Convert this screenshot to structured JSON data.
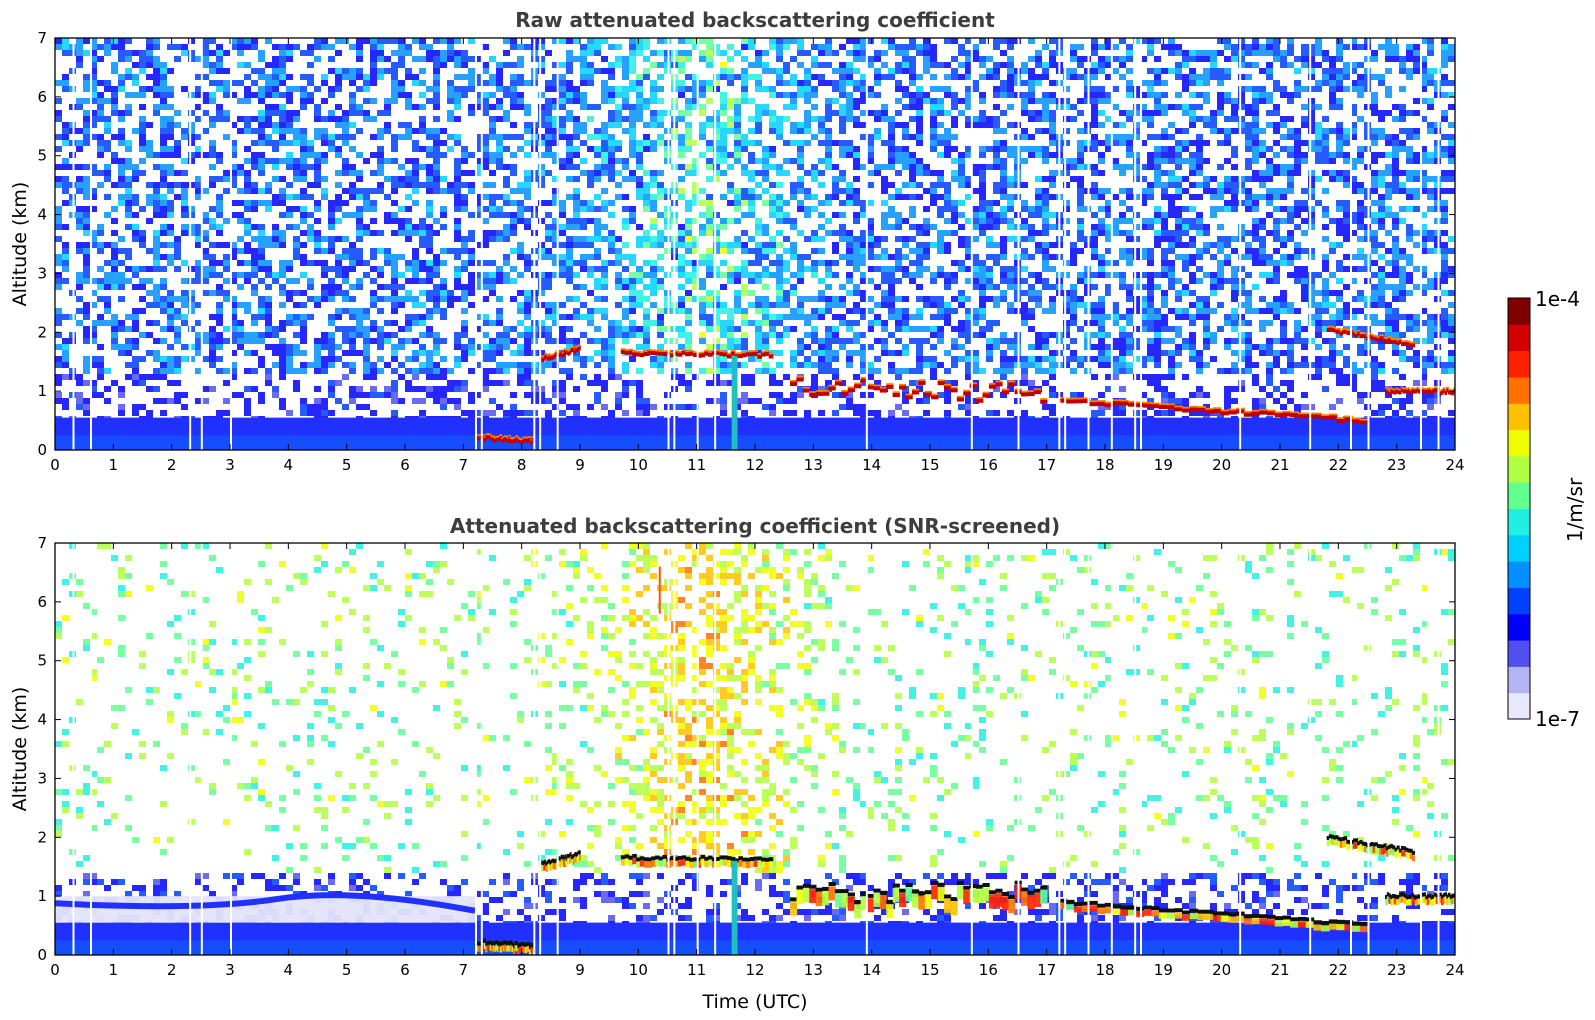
{
  "chart_data": [
    {
      "type": "heatmap",
      "id": "raw",
      "title": "Raw attenuated backscattering coefficient",
      "xlabel": "",
      "ylabel": "Altitude (km)",
      "xlim": [
        0,
        24
      ],
      "ylim": [
        0,
        7
      ],
      "xticks": [
        0,
        1,
        2,
        3,
        4,
        5,
        6,
        7,
        8,
        9,
        10,
        11,
        12,
        13,
        14,
        15,
        16,
        17,
        18,
        19,
        20,
        21,
        22,
        23,
        24
      ],
      "yticks": [
        0,
        1,
        2,
        3,
        4,
        5,
        6,
        7
      ],
      "data_gaps_utc": [
        0.3,
        0.6,
        2.3,
        2.5,
        3.0,
        7.2,
        7.3,
        8.2,
        8.3,
        8.6,
        10.5,
        10.6,
        11.0,
        11.3,
        13.9,
        15.7,
        16.5,
        17.2,
        17.3,
        17.7,
        18.1,
        18.5,
        18.6,
        20.3,
        21.5,
        22.2,
        22.5,
        23.4,
        23.7
      ],
      "layers": [
        {
          "name": "boundary layer aerosol",
          "x": [
            0,
            24
          ],
          "base_km": 0,
          "top_km": 0.55
        },
        {
          "name": "morning cloud",
          "x": [
            7.2,
            8.2
          ],
          "altitude_km": [
            0.22,
            0.15
          ]
        },
        {
          "name": "cloud layer 1",
          "x": [
            8.3,
            9.0
          ],
          "altitude_km": [
            1.55,
            1.72
          ]
        },
        {
          "name": "cloud layer 2",
          "x": [
            9.7,
            12.3
          ],
          "altitude_km": [
            1.65,
            1.62
          ]
        },
        {
          "name": "precipitation fall streak",
          "x": [
            11.6,
            11.7
          ],
          "altitude_km": [
            1.6,
            0
          ]
        },
        {
          "name": "broken cloud 13-17h",
          "x": [
            12.6,
            17.0
          ],
          "altitude_km": [
            1.05,
            1.0
          ]
        },
        {
          "name": "descending cloud 17-24h",
          "x": [
            17.2,
            22.5
          ],
          "altitude_km": [
            0.85,
            0.5
          ]
        },
        {
          "name": "elevated cloud",
          "x": [
            21.8,
            23.3
          ],
          "altitude_km": [
            2.05,
            1.8
          ]
        },
        {
          "name": "late cloud",
          "x": [
            22.8,
            24.0
          ],
          "altitude_km": [
            1.0,
            1.0
          ]
        }
      ]
    },
    {
      "type": "heatmap",
      "id": "screened",
      "title": "Attenuated backscattering coefficient (SNR-screened)",
      "xlabel": "Time (UTC)",
      "ylabel": "Altitude (km)",
      "xlim": [
        0,
        24
      ],
      "ylim": [
        0,
        7
      ],
      "xticks": [
        0,
        1,
        2,
        3,
        4,
        5,
        6,
        7,
        8,
        9,
        10,
        11,
        12,
        13,
        14,
        15,
        16,
        17,
        18,
        19,
        20,
        21,
        22,
        23,
        24
      ],
      "yticks": [
        0,
        1,
        2,
        3,
        4,
        5,
        6,
        7
      ],
      "data_gaps_utc": [
        0.3,
        0.6,
        2.3,
        2.5,
        3.0,
        7.2,
        7.3,
        8.2,
        8.3,
        8.6,
        10.5,
        10.6,
        11.0,
        11.3,
        13.9,
        15.7,
        16.5,
        17.2,
        17.3,
        17.7,
        18.1,
        18.5,
        18.6,
        20.3,
        21.5,
        22.2,
        22.5,
        23.4,
        23.7
      ],
      "layers": [
        {
          "name": "boundary layer aerosol",
          "x": [
            0,
            24
          ],
          "base_km": 0,
          "top_km": 0.55
        },
        {
          "name": "residual layer",
          "x": [
            0,
            7.2
          ],
          "altitude_km": [
            0.85,
            0.8
          ]
        },
        {
          "name": "morning cloud",
          "x": [
            7.2,
            8.2
          ],
          "altitude_km": [
            0.22,
            0.15
          ]
        },
        {
          "name": "cloud layer 1",
          "x": [
            8.3,
            9.0
          ],
          "altitude_km": [
            1.55,
            1.72
          ]
        },
        {
          "name": "cloud layer 2",
          "x": [
            9.7,
            12.3
          ],
          "altitude_km": [
            1.65,
            1.62
          ]
        },
        {
          "name": "precipitation fall streak",
          "x": [
            11.6,
            11.7
          ],
          "altitude_km": [
            1.6,
            0
          ]
        },
        {
          "name": "broken cloud 13-17h",
          "x": [
            12.6,
            17.0
          ],
          "altitude_km": [
            1.05,
            1.1
          ]
        },
        {
          "name": "descending cloud 17-24h",
          "x": [
            17.2,
            22.5
          ],
          "altitude_km": [
            0.9,
            0.5
          ]
        },
        {
          "name": "elevated cloud",
          "x": [
            21.8,
            23.3
          ],
          "altitude_km": [
            2.0,
            1.75
          ]
        },
        {
          "name": "late cloud",
          "x": [
            22.8,
            24.0
          ],
          "altitude_km": [
            1.0,
            1.0
          ]
        }
      ],
      "isolated_signal": {
        "x": 10.35,
        "altitude_km": [
          5.8,
          6.6
        ]
      }
    }
  ],
  "colorbar": {
    "label": "1/m/sr",
    "min_label": "1e-7",
    "max_label": "1e-4",
    "scale": "log",
    "colors": [
      "#e8e8ff",
      "#b4b4f5",
      "#5050f0",
      "#0000ff",
      "#0040ff",
      "#0090ff",
      "#00d0ff",
      "#20f0e0",
      "#60ff90",
      "#b0ff40",
      "#f0ff00",
      "#ffc000",
      "#ff7000",
      "#ff2000",
      "#d00000",
      "#800000"
    ]
  }
}
